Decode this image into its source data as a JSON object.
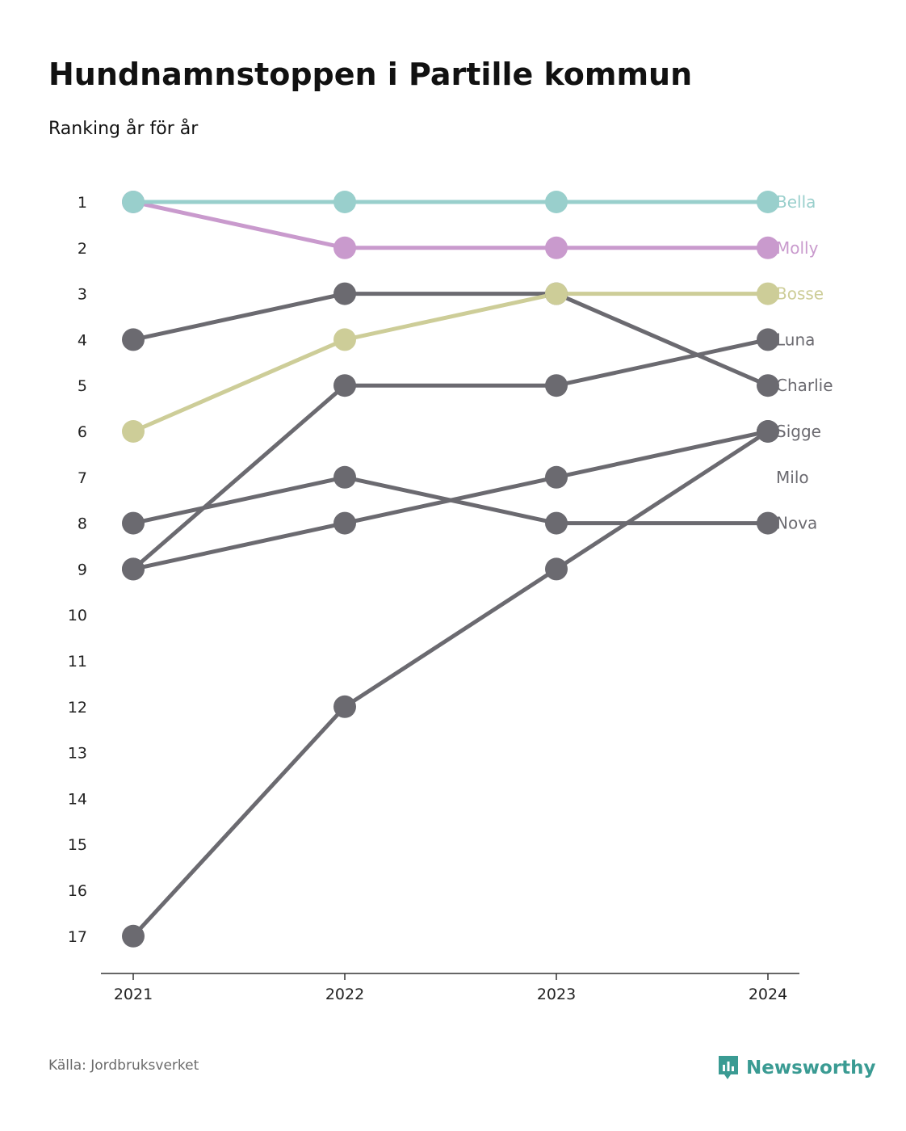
{
  "title": "Hundnamnstoppen i Partille kommun",
  "subtitle": "Ranking år för år",
  "source": "Källa: Jordbruksverket",
  "brand": {
    "name": "Newsworthy",
    "color": "#3a9b93"
  },
  "chart_data": {
    "type": "line",
    "x": [
      "2021",
      "2022",
      "2023",
      "2024"
    ],
    "y_ticks": [
      "1",
      "2",
      "3",
      "4",
      "5",
      "6",
      "7",
      "8",
      "9",
      "10",
      "11",
      "12",
      "13",
      "14",
      "15",
      "16",
      "17"
    ],
    "ylim": [
      1,
      17
    ],
    "y_inverted": true,
    "grid": false,
    "series": [
      {
        "name": "Bella",
        "values": [
          1,
          1,
          1,
          1
        ],
        "color": "#99cfcc"
      },
      {
        "name": "Molly",
        "values": [
          1,
          2,
          2,
          2
        ],
        "color": "#c99acd"
      },
      {
        "name": "Bosse",
        "values": [
          6,
          4,
          3,
          3
        ],
        "color": "#cdcd98"
      },
      {
        "name": "Luna",
        "values": [
          9,
          5,
          5,
          4
        ],
        "color": "#6b6a70"
      },
      {
        "name": "Charlie",
        "values": [
          4,
          3,
          3,
          5
        ],
        "color": "#6b6a70"
      },
      {
        "name": "Sigge",
        "values": [
          9,
          8,
          7,
          6
        ],
        "color": "#6b6a70"
      },
      {
        "name": "Milo",
        "values": [
          17,
          12,
          9,
          6
        ],
        "color": "#6b6a70"
      },
      {
        "name": "Nova",
        "values": [
          8,
          7,
          8,
          8
        ],
        "color": "#6b6a70"
      }
    ],
    "end_labels": [
      {
        "name": "Bella",
        "rank": 1,
        "color": "#99cfcc"
      },
      {
        "name": "Molly",
        "rank": 2,
        "color": "#c99acd"
      },
      {
        "name": "Bosse",
        "rank": 3,
        "color": "#cdcd98"
      },
      {
        "name": "Luna",
        "rank": 4,
        "color": "#6b6a70"
      },
      {
        "name": "Charlie",
        "rank": 5,
        "color": "#6b6a70"
      },
      {
        "name": "Sigge",
        "rank": 6,
        "color": "#6b6a70"
      },
      {
        "name": "Milo",
        "rank": 7,
        "color": "#6b6a70"
      },
      {
        "name": "Nova",
        "rank": 8,
        "color": "#6b6a70"
      }
    ]
  }
}
